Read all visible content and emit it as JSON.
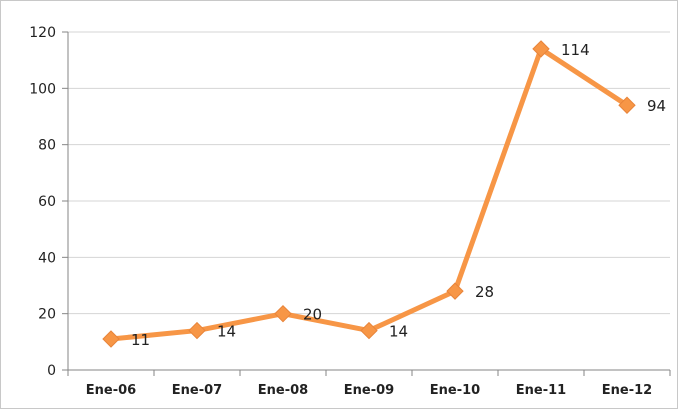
{
  "chart_data": {
    "type": "line",
    "categories": [
      "Ene-06",
      "Ene-07",
      "Ene-08",
      "Ene-09",
      "Ene-10",
      "Ene-11",
      "Ene-12"
    ],
    "values": [
      11,
      14,
      20,
      14,
      28,
      114,
      94
    ],
    "ylim": [
      0,
      120
    ],
    "yticks": [
      0,
      20,
      40,
      60,
      80,
      100,
      120
    ],
    "grid": true,
    "line_color": "#f79646",
    "marker": "diamond",
    "legend": "none"
  }
}
